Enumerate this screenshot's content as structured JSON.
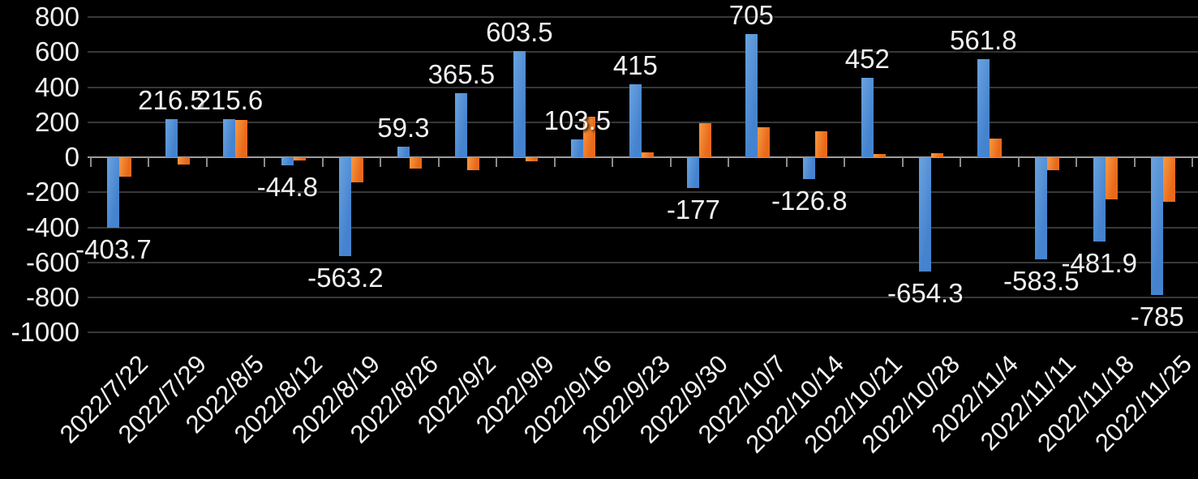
{
  "chart_data": {
    "type": "bar",
    "title": "",
    "legend": "none",
    "grid": true,
    "background_color": "#000000",
    "text_color": "#f2f2f2",
    "gridline_color": "#383838",
    "axis_color": "#9e9e9e",
    "categories": [
      "2022/7/22",
      "2022/7/29",
      "2022/8/5",
      "2022/8/12",
      "2022/8/19",
      "2022/8/26",
      "2022/9/2",
      "2022/9/9",
      "2022/9/16",
      "2022/9/23",
      "2022/9/30",
      "2022/10/7",
      "2022/10/14",
      "2022/10/21",
      "2022/10/28",
      "2022/11/4",
      "2022/11/11",
      "2022/11/18",
      "2022/11/25"
    ],
    "series": [
      {
        "name": "series-1-blue",
        "color": "#4583cf",
        "color_light": "#6ba3de",
        "values": [
          -403.7,
          216.5,
          215.6,
          -44.8,
          -563.2,
          59.3,
          365.5,
          603.5,
          103.5,
          415,
          -177,
          705,
          -126.8,
          452,
          -654.3,
          561.8,
          -583.5,
          -481.9,
          -785
        ],
        "data_labels": [
          "-403.7",
          "216.5",
          "215.6",
          "-44.8",
          "-563.2",
          "59.3",
          "365.5",
          "603.5",
          "103.5",
          "415",
          "-177",
          "705",
          "-126.8",
          "452",
          "-654.3",
          "561.8",
          "-583.5",
          "-481.9",
          "-785"
        ]
      },
      {
        "name": "series-2-orange",
        "color": "#e86a1a",
        "color_light": "#f79a45",
        "values": [
          -110,
          -42,
          214,
          -18,
          -145,
          -65,
          -75,
          -22,
          230,
          30,
          192,
          173,
          150,
          19,
          25,
          105,
          -74,
          -240,
          -255
        ],
        "data_labels": []
      }
    ],
    "y_axis": {
      "min": -1000,
      "max": 800,
      "tick_interval": 200,
      "tick_labels": [
        "800",
        "600",
        "400",
        "200",
        "0",
        "-200",
        "-400",
        "-600",
        "-800",
        "-1000"
      ]
    },
    "x_axis": {
      "label_rotation_deg": -45
    }
  }
}
